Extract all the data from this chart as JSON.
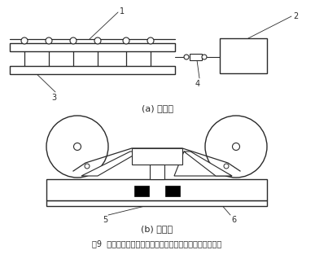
{
  "bg_color": "#ffffff",
  "lc": "#2a2a2a",
  "title": "图9  缆式线型感温火灾探测器在皮带输送装置上设置示意图",
  "label_a": "(a) 侧视图",
  "label_b": "(b) 正视图",
  "labels": [
    "1",
    "2",
    "3",
    "4",
    "5",
    "6"
  ],
  "fig_w": 3.87,
  "fig_h": 3.18,
  "dpi": 100
}
